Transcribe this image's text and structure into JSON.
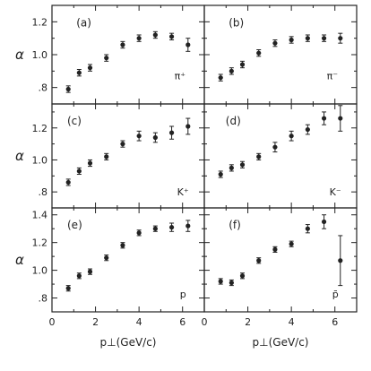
{
  "figure": {
    "ylabel": "α",
    "xlabel": "p⊥(GeV/c)",
    "x_ticks": [
      "0",
      "2",
      "4",
      "6"
    ]
  },
  "chart_data": [
    {
      "type": "scatter",
      "panel": "(a)",
      "series": [
        {
          "name": "π⁺",
          "x": [
            0.75,
            1.25,
            1.75,
            2.5,
            3.25,
            4.0,
            4.75,
            5.5,
            6.25
          ],
          "y": [
            0.79,
            0.89,
            0.92,
            0.98,
            1.06,
            1.1,
            1.12,
            1.11,
            1.06
          ],
          "yerr": [
            0.02,
            0.02,
            0.02,
            0.02,
            0.02,
            0.02,
            0.02,
            0.02,
            0.04
          ]
        }
      ],
      "ylabel": "α",
      "xlim": [
        0,
        7
      ],
      "ylim": [
        0.7,
        1.3
      ],
      "yticks": [
        ".8",
        "1.0",
        "1.2"
      ],
      "ytick_values": [
        0.8,
        1.0,
        1.2
      ]
    },
    {
      "type": "scatter",
      "panel": "(b)",
      "series": [
        {
          "name": "π⁻",
          "x": [
            0.75,
            1.25,
            1.75,
            2.5,
            3.25,
            4.0,
            4.75,
            5.5,
            6.25
          ],
          "y": [
            0.86,
            0.9,
            0.94,
            1.01,
            1.07,
            1.09,
            1.1,
            1.1,
            1.1
          ],
          "yerr": [
            0.02,
            0.02,
            0.02,
            0.02,
            0.02,
            0.02,
            0.02,
            0.02,
            0.03
          ]
        }
      ],
      "xlim": [
        0,
        7
      ],
      "ylim": [
        0.7,
        1.3
      ]
    },
    {
      "type": "scatter",
      "panel": "(c)",
      "series": [
        {
          "name": "K⁺",
          "x": [
            0.75,
            1.25,
            1.75,
            2.5,
            3.25,
            4.0,
            4.75,
            5.5,
            6.25
          ],
          "y": [
            0.86,
            0.93,
            0.98,
            1.02,
            1.1,
            1.15,
            1.14,
            1.17,
            1.21
          ],
          "yerr": [
            0.02,
            0.02,
            0.02,
            0.02,
            0.02,
            0.03,
            0.03,
            0.04,
            0.05
          ]
        }
      ],
      "ylabel": "α",
      "xlim": [
        0,
        7
      ],
      "ylim": [
        0.7,
        1.35
      ],
      "yticks": [
        ".8",
        "1.0",
        "1.2"
      ],
      "ytick_values": [
        0.8,
        1.0,
        1.2
      ]
    },
    {
      "type": "scatter",
      "panel": "(d)",
      "series": [
        {
          "name": "K⁻",
          "x": [
            0.75,
            1.25,
            1.75,
            2.5,
            3.25,
            4.0,
            4.75,
            5.5,
            6.25
          ],
          "y": [
            0.91,
            0.95,
            0.97,
            1.02,
            1.08,
            1.15,
            1.19,
            1.26,
            1.26
          ],
          "yerr": [
            0.02,
            0.02,
            0.02,
            0.02,
            0.03,
            0.03,
            0.03,
            0.04,
            0.08
          ]
        }
      ],
      "xlim": [
        0,
        7
      ],
      "ylim": [
        0.7,
        1.35
      ]
    },
    {
      "type": "scatter",
      "panel": "(e)",
      "series": [
        {
          "name": "p",
          "x": [
            0.75,
            1.25,
            1.75,
            2.5,
            3.25,
            4.0,
            4.75,
            5.5,
            6.25
          ],
          "y": [
            0.87,
            0.96,
            0.99,
            1.09,
            1.18,
            1.27,
            1.3,
            1.31,
            1.32
          ],
          "yerr": [
            0.02,
            0.02,
            0.02,
            0.02,
            0.02,
            0.02,
            0.02,
            0.03,
            0.04
          ]
        }
      ],
      "ylabel": "α",
      "xlabel": "p⊥(GeV/c)",
      "xlim": [
        0,
        7
      ],
      "ylim": [
        0.7,
        1.45
      ],
      "yticks": [
        ".8",
        "1.0",
        "1.2",
        "1.4"
      ],
      "ytick_values": [
        0.8,
        1.0,
        1.2,
        1.4
      ],
      "xticks": [
        "0",
        "2",
        "4",
        "6"
      ]
    },
    {
      "type": "scatter",
      "panel": "(f)",
      "series": [
        {
          "name": "p̄",
          "x": [
            0.75,
            1.25,
            1.75,
            2.5,
            3.25,
            4.0,
            4.75,
            5.5,
            6.25
          ],
          "y": [
            0.92,
            0.91,
            0.96,
            1.07,
            1.15,
            1.19,
            1.3,
            1.35,
            1.07
          ],
          "yerr": [
            0.02,
            0.02,
            0.02,
            0.02,
            0.02,
            0.02,
            0.03,
            0.05,
            0.18
          ]
        }
      ],
      "xlabel": "p⊥(GeV/c)",
      "xlim": [
        0,
        7
      ],
      "ylim": [
        0.7,
        1.45
      ],
      "xticks": [
        "0",
        "2",
        "4",
        "6"
      ]
    }
  ]
}
